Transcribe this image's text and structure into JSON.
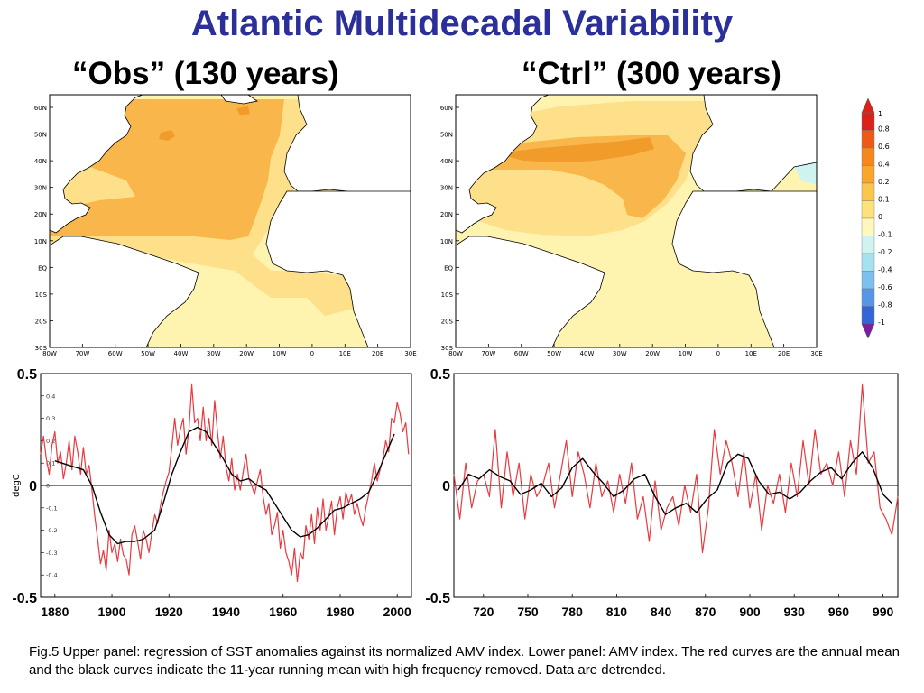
{
  "title": "Atlantic Multidecadal Variability",
  "panels": {
    "obs_label": "“Obs” (130 years)",
    "ctrl_label": "“Ctrl” (300 years)"
  },
  "colors": {
    "title": "#2b2f9a",
    "red_curve": "#e8393f",
    "black_curve": "#000000",
    "map_bg": "#fff3b0",
    "map_level1": "#fde089",
    "map_level2": "#f9b64b",
    "map_level3": "#f09b2a",
    "land": "#ffffff"
  },
  "maps": {
    "lat_ticks": [
      "60N",
      "50N",
      "40N",
      "30N",
      "20N",
      "10N",
      "EQ",
      "10S",
      "20S",
      "30S"
    ],
    "lon_ticks": [
      "80W",
      "70W",
      "60W",
      "50W",
      "40W",
      "30W",
      "20W",
      "10W",
      "0",
      "10E",
      "20E",
      "30E"
    ]
  },
  "colorbar": {
    "labels": [
      "1",
      "0.8",
      "0.6",
      "0.4",
      "0.2",
      "0.1",
      "0",
      "-0.1",
      "-0.2",
      "-0.4",
      "-0.6",
      "-0.8",
      "-1"
    ],
    "colors": [
      "#d8221a",
      "#ee5a16",
      "#f6871c",
      "#f9a72c",
      "#fbc64c",
      "#fde27a",
      "#fff8bc",
      "#cff3f0",
      "#a6e1f2",
      "#7fbfee",
      "#5596e6",
      "#3266d6",
      "#2233b2"
    ],
    "top_arrow": "#d8221a",
    "bottom_arrow": "#7b1fa2"
  },
  "chart_data": [
    {
      "type": "line",
      "panel": "Obs",
      "ylabel": "degC",
      "ylim": [
        -0.5,
        0.5
      ],
      "yticks_major": [
        "0.5",
        "0",
        "-0.5"
      ],
      "yticks_minor": [
        "0.4",
        "0.3",
        "0.2",
        "0.1",
        "0",
        "-0.1",
        "-0.2",
        "-0.3",
        "-0.4"
      ],
      "xlim": [
        1875,
        2005
      ],
      "xtick_labels": [
        "1880",
        "1900",
        "1920",
        "1940",
        "1960",
        "1980",
        "2000"
      ],
      "xtick_values": [
        1880,
        1900,
        1920,
        1940,
        1960,
        1980,
        2000
      ],
      "series": [
        {
          "role": "annual",
          "x": [
            1875,
            1876,
            1877,
            1878,
            1879,
            1880,
            1881,
            1882,
            1883,
            1884,
            1885,
            1886,
            1887,
            1888,
            1889,
            1890,
            1891,
            1892,
            1893,
            1894,
            1895,
            1896,
            1897,
            1898,
            1899,
            1900,
            1901,
            1902,
            1903,
            1904,
            1905,
            1906,
            1907,
            1908,
            1909,
            1910,
            1911,
            1912,
            1913,
            1914,
            1915,
            1916,
            1917,
            1918,
            1919,
            1920,
            1921,
            1922,
            1923,
            1924,
            1925,
            1926,
            1927,
            1928,
            1929,
            1930,
            1931,
            1932,
            1933,
            1934,
            1935,
            1936,
            1937,
            1938,
            1939,
            1940,
            1941,
            1942,
            1943,
            1944,
            1945,
            1946,
            1947,
            1948,
            1949,
            1950,
            1951,
            1952,
            1953,
            1954,
            1955,
            1956,
            1957,
            1958,
            1959,
            1960,
            1961,
            1962,
            1963,
            1964,
            1965,
            1966,
            1967,
            1968,
            1969,
            1970,
            1971,
            1972,
            1973,
            1974,
            1975,
            1976,
            1977,
            1978,
            1979,
            1980,
            1981,
            1982,
            1983,
            1984,
            1985,
            1986,
            1987,
            1988,
            1989,
            1990,
            1991,
            1992,
            1993,
            1994,
            1995,
            1996,
            1997,
            1998,
            1999,
            2000,
            2001,
            2002,
            2003,
            2004
          ],
          "values": [
            0.14,
            0.22,
            0.12,
            0.05,
            0.18,
            0.24,
            0.1,
            0.15,
            0.03,
            0.1,
            0.2,
            0.07,
            0.22,
            0.15,
            0.05,
            0.17,
            0.05,
            0.09,
            -0.02,
            -0.14,
            -0.24,
            -0.35,
            -0.29,
            -0.38,
            -0.2,
            -0.3,
            -0.26,
            -0.34,
            -0.24,
            -0.31,
            -0.33,
            -0.4,
            -0.22,
            -0.18,
            -0.25,
            -0.33,
            -0.2,
            -0.24,
            -0.3,
            -0.21,
            -0.13,
            -0.17,
            -0.09,
            -0.03,
            0.02,
            0.06,
            0.17,
            0.3,
            0.18,
            0.25,
            0.3,
            0.14,
            0.25,
            0.45,
            0.28,
            0.3,
            0.2,
            0.35,
            0.2,
            0.3,
            0.18,
            0.38,
            0.24,
            0.12,
            0.22,
            0.08,
            0.02,
            0.12,
            -0.02,
            0.05,
            -0.02,
            0.06,
            0.14,
            0.03,
            0.0,
            -0.04,
            0.02,
            0.07,
            -0.05,
            -0.13,
            -0.08,
            -0.22,
            -0.18,
            -0.12,
            -0.28,
            -0.2,
            -0.3,
            -0.34,
            -0.4,
            -0.28,
            -0.43,
            -0.3,
            -0.33,
            -0.18,
            -0.24,
            -0.13,
            -0.26,
            -0.1,
            -0.2,
            -0.06,
            -0.2,
            -0.14,
            -0.07,
            -0.22,
            -0.1,
            -0.05,
            -0.15,
            -0.03,
            -0.08,
            -0.04,
            -0.13,
            -0.08,
            -0.14,
            -0.18,
            -0.1,
            -0.04,
            0.02,
            0.1,
            0.02,
            0.07,
            0.12,
            0.2,
            0.15,
            0.3,
            0.28,
            0.37,
            0.32,
            0.24,
            0.28,
            0.14
          ]
        },
        {
          "role": "11-year running mean",
          "x": [
            1880,
            1885,
            1890,
            1893,
            1896,
            1899,
            1902,
            1905,
            1908,
            1911,
            1915,
            1918,
            1921,
            1924,
            1927,
            1930,
            1933,
            1936,
            1939,
            1942,
            1945,
            1948,
            1951,
            1954,
            1957,
            1960,
            1963,
            1966,
            1969,
            1972,
            1975,
            1978,
            1981,
            1984,
            1987,
            1990,
            1993,
            1996,
            1999
          ],
          "values": [
            0.11,
            0.09,
            0.07,
            0.0,
            -0.12,
            -0.22,
            -0.26,
            -0.25,
            -0.25,
            -0.24,
            -0.2,
            -0.08,
            0.05,
            0.15,
            0.24,
            0.26,
            0.24,
            0.18,
            0.12,
            0.05,
            0.02,
            0.03,
            0.0,
            -0.02,
            -0.08,
            -0.14,
            -0.2,
            -0.23,
            -0.22,
            -0.19,
            -0.15,
            -0.11,
            -0.1,
            -0.08,
            -0.06,
            -0.03,
            0.05,
            0.14,
            0.23
          ]
        }
      ]
    },
    {
      "type": "line",
      "panel": "Ctrl",
      "ylim": [
        -0.5,
        0.5
      ],
      "yticks_major": [
        "0.5",
        "0",
        "-0.5"
      ],
      "xlim": [
        700,
        1000
      ],
      "xtick_labels": [
        "720",
        "750",
        "780",
        "810",
        "840",
        "870",
        "900",
        "930",
        "960",
        "990"
      ],
      "xtick_values": [
        720,
        750,
        780,
        810,
        840,
        870,
        900,
        930,
        960,
        990
      ],
      "series": [
        {
          "role": "annual",
          "x": [
            700,
            704,
            708,
            712,
            716,
            720,
            724,
            728,
            732,
            736,
            740,
            744,
            748,
            752,
            756,
            760,
            764,
            768,
            772,
            776,
            780,
            784,
            788,
            792,
            796,
            800,
            804,
            808,
            812,
            816,
            820,
            824,
            828,
            832,
            836,
            840,
            844,
            848,
            852,
            856,
            860,
            864,
            868,
            872,
            876,
            880,
            884,
            888,
            892,
            896,
            900,
            904,
            908,
            912,
            916,
            920,
            924,
            928,
            932,
            936,
            940,
            944,
            948,
            952,
            956,
            960,
            964,
            968,
            972,
            976,
            980,
            984,
            988,
            992,
            996,
            1000
          ],
          "values": [
            0.05,
            -0.15,
            0.1,
            -0.1,
            0.02,
            0.05,
            -0.05,
            0.25,
            -0.1,
            0.15,
            -0.05,
            0.1,
            -0.15,
            0.05,
            -0.05,
            0.0,
            0.1,
            -0.1,
            0.05,
            0.2,
            -0.05,
            0.15,
            0.05,
            -0.1,
            0.1,
            -0.05,
            0.02,
            -0.12,
            0.05,
            -0.08,
            0.1,
            -0.15,
            -0.05,
            -0.25,
            0.02,
            -0.2,
            -0.1,
            -0.05,
            -0.18,
            0.0,
            -0.12,
            0.05,
            -0.3,
            -0.1,
            0.25,
            0.05,
            0.2,
            0.1,
            -0.05,
            0.15,
            -0.1,
            0.05,
            -0.2,
            0.0,
            -0.08,
            0.05,
            -0.12,
            0.1,
            -0.05,
            0.2,
            0.0,
            0.25,
            0.05,
            0.1,
            0.0,
            0.15,
            -0.05,
            0.2,
            0.05,
            0.45,
            0.1,
            0.15,
            -0.1,
            -0.15,
            -0.22,
            -0.05
          ]
        },
        {
          "role": "11-year running mean",
          "x": [
            703,
            710,
            717,
            724,
            731,
            738,
            745,
            752,
            759,
            766,
            773,
            780,
            787,
            794,
            801,
            808,
            815,
            822,
            829,
            836,
            843,
            850,
            857,
            864,
            871,
            878,
            885,
            892,
            899,
            906,
            913,
            920,
            927,
            934,
            941,
            948,
            955,
            962,
            969,
            976,
            983,
            990,
            996
          ],
          "values": [
            -0.02,
            0.05,
            0.03,
            0.07,
            0.04,
            0.02,
            -0.04,
            -0.02,
            0.01,
            -0.05,
            -0.01,
            0.08,
            0.12,
            0.06,
            0.01,
            -0.05,
            -0.02,
            0.03,
            0.05,
            -0.05,
            -0.13,
            -0.1,
            -0.08,
            -0.12,
            -0.06,
            -0.02,
            0.1,
            0.14,
            0.12,
            0.02,
            -0.04,
            -0.03,
            -0.06,
            -0.03,
            0.02,
            0.06,
            0.08,
            0.03,
            0.1,
            0.15,
            0.08,
            -0.04,
            -0.08
          ]
        }
      ]
    }
  ],
  "caption": "Fig.5 Upper panel: regression of SST anomalies against its normalized AMV index. Lower panel: AMV index. The red curves are the annual mean and the black curves indicate the 11-year running mean with high frequency removed. Data are detrended."
}
